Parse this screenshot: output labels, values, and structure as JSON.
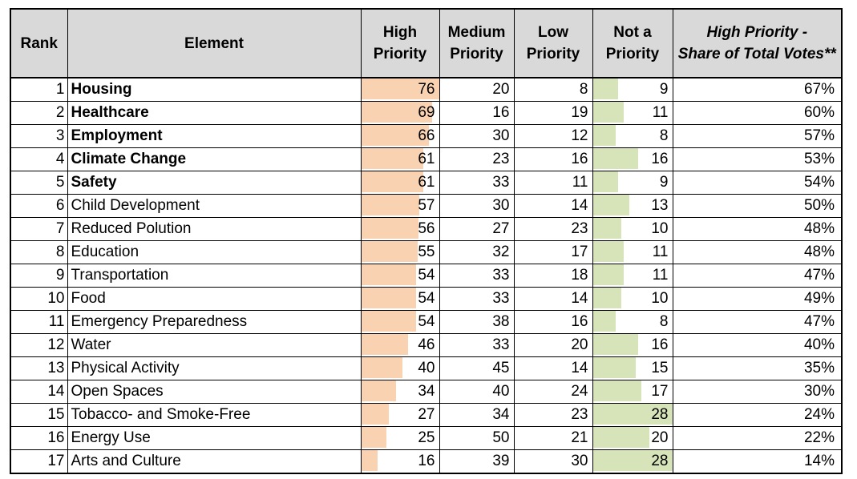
{
  "header": {
    "rank": "Rank",
    "element": "Element",
    "high_l1": "High",
    "high_l2": "Priority",
    "medium_l1": "Medium",
    "medium_l2": "Priority",
    "low_l1": "Low",
    "low_l2": "Priority",
    "not_l1": "Not a",
    "not_l2": "Priority",
    "share_l1": "High Priority -",
    "share_l2": "Share of Total Votes**"
  },
  "colors": {
    "header_bg": "#d9d9d9",
    "high_bar": "#f9d2b2",
    "not_bar": "#d7e4ba",
    "border": "#000000"
  },
  "chart_data": {
    "type": "table",
    "title": "",
    "columns": [
      "Rank",
      "Element",
      "High Priority",
      "Medium Priority",
      "Low Priority",
      "Not a Priority",
      "High Priority - Share of Total Votes**"
    ],
    "bar_max": {
      "high_priority": 76,
      "not_a_priority": 28
    },
    "rows": [
      {
        "rank": 1,
        "element": "Housing",
        "bold": true,
        "high_priority": 76,
        "medium_priority": 20,
        "low_priority": 8,
        "not_a_priority": 9,
        "share": "67%"
      },
      {
        "rank": 2,
        "element": "Healthcare",
        "bold": true,
        "high_priority": 69,
        "medium_priority": 16,
        "low_priority": 19,
        "not_a_priority": 11,
        "share": "60%"
      },
      {
        "rank": 3,
        "element": "Employment",
        "bold": true,
        "high_priority": 66,
        "medium_priority": 30,
        "low_priority": 12,
        "not_a_priority": 8,
        "share": "57%"
      },
      {
        "rank": 4,
        "element": "Climate Change",
        "bold": true,
        "high_priority": 61,
        "medium_priority": 23,
        "low_priority": 16,
        "not_a_priority": 16,
        "share": "53%"
      },
      {
        "rank": 5,
        "element": "Safety",
        "bold": true,
        "high_priority": 61,
        "medium_priority": 33,
        "low_priority": 11,
        "not_a_priority": 9,
        "share": "54%"
      },
      {
        "rank": 6,
        "element": "Child Development",
        "bold": false,
        "high_priority": 57,
        "medium_priority": 30,
        "low_priority": 14,
        "not_a_priority": 13,
        "share": "50%"
      },
      {
        "rank": 7,
        "element": "Reduced Polution",
        "bold": false,
        "high_priority": 56,
        "medium_priority": 27,
        "low_priority": 23,
        "not_a_priority": 10,
        "share": "48%"
      },
      {
        "rank": 8,
        "element": "Education",
        "bold": false,
        "high_priority": 55,
        "medium_priority": 32,
        "low_priority": 17,
        "not_a_priority": 11,
        "share": "48%"
      },
      {
        "rank": 9,
        "element": "Transportation",
        "bold": false,
        "high_priority": 54,
        "medium_priority": 33,
        "low_priority": 18,
        "not_a_priority": 11,
        "share": "47%"
      },
      {
        "rank": 10,
        "element": "Food",
        "bold": false,
        "high_priority": 54,
        "medium_priority": 33,
        "low_priority": 14,
        "not_a_priority": 10,
        "share": "49%"
      },
      {
        "rank": 11,
        "element": "Emergency Preparedness",
        "bold": false,
        "high_priority": 54,
        "medium_priority": 38,
        "low_priority": 16,
        "not_a_priority": 8,
        "share": "47%"
      },
      {
        "rank": 12,
        "element": "Water",
        "bold": false,
        "high_priority": 46,
        "medium_priority": 33,
        "low_priority": 20,
        "not_a_priority": 16,
        "share": "40%"
      },
      {
        "rank": 13,
        "element": "Physical Activity",
        "bold": false,
        "high_priority": 40,
        "medium_priority": 45,
        "low_priority": 14,
        "not_a_priority": 15,
        "share": "35%"
      },
      {
        "rank": 14,
        "element": "Open Spaces",
        "bold": false,
        "high_priority": 34,
        "medium_priority": 40,
        "low_priority": 24,
        "not_a_priority": 17,
        "share": "30%"
      },
      {
        "rank": 15,
        "element": "Tobacco- and Smoke-Free",
        "bold": false,
        "high_priority": 27,
        "medium_priority": 34,
        "low_priority": 23,
        "not_a_priority": 28,
        "share": "24%"
      },
      {
        "rank": 16,
        "element": "Energy Use",
        "bold": false,
        "high_priority": 25,
        "medium_priority": 50,
        "low_priority": 21,
        "not_a_priority": 20,
        "share": "22%"
      },
      {
        "rank": 17,
        "element": "Arts and Culture",
        "bold": false,
        "high_priority": 16,
        "medium_priority": 39,
        "low_priority": 30,
        "not_a_priority": 28,
        "share": "14%"
      }
    ]
  }
}
